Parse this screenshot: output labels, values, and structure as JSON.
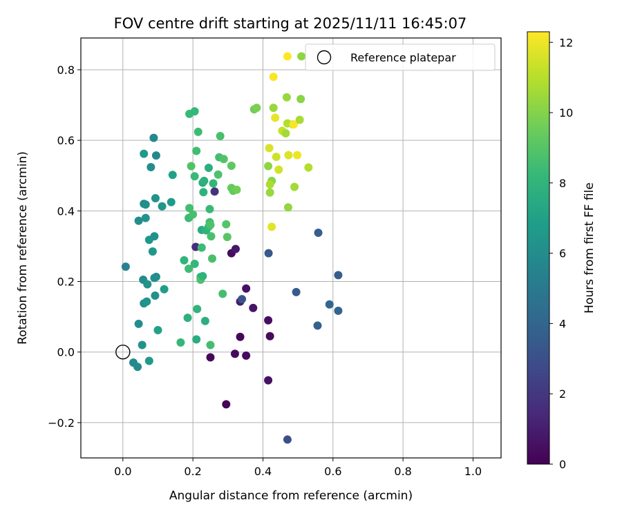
{
  "chart_data": {
    "type": "scatter",
    "title": "FOV centre drift starting at 2025/11/11 16:45:07",
    "xlabel": "Angular distance from reference (arcmin)",
    "ylabel": "Rotation from reference (arcmin)",
    "xlim": [
      -0.12,
      1.08
    ],
    "ylim": [
      -0.3,
      0.89
    ],
    "xticks": [
      0.0,
      0.2,
      0.4,
      0.6,
      0.8,
      1.0
    ],
    "xtick_labels": [
      "0.0",
      "0.2",
      "0.4",
      "0.6",
      "0.8",
      "1.0"
    ],
    "yticks": [
      -0.2,
      0.0,
      0.2,
      0.4,
      0.6,
      0.8
    ],
    "ytick_labels": [
      "−0.2",
      "0.0",
      "0.2",
      "0.4",
      "0.6",
      "0.8"
    ],
    "grid": true,
    "legend": {
      "label": "Reference platepar",
      "location": "top-right"
    },
    "reference_point": {
      "x": 0.0,
      "y": 0.0
    },
    "colorbar": {
      "label": "Hours from first FF file",
      "colormap": "viridis",
      "range": [
        0,
        12.3
      ],
      "ticks": [
        0,
        2,
        4,
        6,
        8,
        10,
        12
      ],
      "tick_labels": [
        "0",
        "2",
        "4",
        "6",
        "8",
        "10",
        "12"
      ]
    },
    "series": [
      {
        "name": "FOV centre",
        "points": [
          {
            "x": 0.25,
            "y": -0.015,
            "h": 0.2
          },
          {
            "x": 0.295,
            "y": -0.148,
            "h": 0.1
          },
          {
            "x": 0.32,
            "y": -0.005,
            "h": 0.3
          },
          {
            "x": 0.352,
            "y": -0.01,
            "h": 0.4
          },
          {
            "x": 0.335,
            "y": 0.043,
            "h": 0.2
          },
          {
            "x": 0.42,
            "y": 0.045,
            "h": 0.3
          },
          {
            "x": 0.415,
            "y": 0.09,
            "h": 0.5
          },
          {
            "x": 0.372,
            "y": 0.125,
            "h": 0.7
          },
          {
            "x": 0.335,
            "y": 0.143,
            "h": 0.9
          },
          {
            "x": 0.352,
            "y": 0.18,
            "h": 0.6
          },
          {
            "x": 0.31,
            "y": 0.28,
            "h": 0.4
          },
          {
            "x": 0.322,
            "y": 0.292,
            "h": 0.8
          },
          {
            "x": 0.415,
            "y": -0.08,
            "h": 0.6
          },
          {
            "x": 0.262,
            "y": 0.455,
            "h": 1.8
          },
          {
            "x": 0.208,
            "y": 0.298,
            "h": 1.6
          },
          {
            "x": 0.34,
            "y": 0.15,
            "h": 3.2
          },
          {
            "x": 0.416,
            "y": 0.28,
            "h": 3.4
          },
          {
            "x": 0.47,
            "y": -0.248,
            "h": 3.0
          },
          {
            "x": 0.495,
            "y": 0.17,
            "h": 3.5
          },
          {
            "x": 0.558,
            "y": 0.338,
            "h": 3.6
          },
          {
            "x": 0.556,
            "y": 0.075,
            "h": 3.8
          },
          {
            "x": 0.59,
            "y": 0.135,
            "h": 4.0
          },
          {
            "x": 0.615,
            "y": 0.218,
            "h": 3.6
          },
          {
            "x": 0.615,
            "y": 0.117,
            "h": 3.9
          },
          {
            "x": 0.008,
            "y": 0.242,
            "h": 5.5
          },
          {
            "x": 0.03,
            "y": -0.03,
            "h": 5.8
          },
          {
            "x": 0.042,
            "y": -0.042,
            "h": 5.9
          },
          {
            "x": 0.055,
            "y": 0.02,
            "h": 6.2
          },
          {
            "x": 0.045,
            "y": 0.08,
            "h": 6.0
          },
          {
            "x": 0.058,
            "y": 0.205,
            "h": 6.0
          },
          {
            "x": 0.07,
            "y": 0.192,
            "h": 6.3
          },
          {
            "x": 0.06,
            "y": 0.138,
            "h": 6.1
          },
          {
            "x": 0.068,
            "y": 0.143,
            "h": 6.4
          },
          {
            "x": 0.075,
            "y": -0.025,
            "h": 6.6
          },
          {
            "x": 0.092,
            "y": 0.16,
            "h": 6.2
          },
          {
            "x": 0.095,
            "y": 0.213,
            "h": 6.0
          },
          {
            "x": 0.09,
            "y": 0.21,
            "h": 6.1
          },
          {
            "x": 0.1,
            "y": 0.062,
            "h": 7.0
          },
          {
            "x": 0.118,
            "y": 0.178,
            "h": 6.9
          },
          {
            "x": 0.045,
            "y": 0.372,
            "h": 6.0
          },
          {
            "x": 0.065,
            "y": 0.38,
            "h": 6.3
          },
          {
            "x": 0.075,
            "y": 0.318,
            "h": 6.5
          },
          {
            "x": 0.09,
            "y": 0.328,
            "h": 6.2
          },
          {
            "x": 0.085,
            "y": 0.285,
            "h": 6.5
          },
          {
            "x": 0.06,
            "y": 0.42,
            "h": 5.8
          },
          {
            "x": 0.065,
            "y": 0.418,
            "h": 6.1
          },
          {
            "x": 0.093,
            "y": 0.436,
            "h": 6.3
          },
          {
            "x": 0.112,
            "y": 0.413,
            "h": 6.4
          },
          {
            "x": 0.138,
            "y": 0.425,
            "h": 6.7
          },
          {
            "x": 0.142,
            "y": 0.502,
            "h": 7.0
          },
          {
            "x": 0.06,
            "y": 0.562,
            "h": 6.6
          },
          {
            "x": 0.08,
            "y": 0.524,
            "h": 6.0
          },
          {
            "x": 0.095,
            "y": 0.557,
            "h": 5.8
          },
          {
            "x": 0.088,
            "y": 0.607,
            "h": 5.8
          },
          {
            "x": 0.165,
            "y": 0.027,
            "h": 8.2
          },
          {
            "x": 0.185,
            "y": 0.097,
            "h": 7.8
          },
          {
            "x": 0.21,
            "y": 0.036,
            "h": 7.6
          },
          {
            "x": 0.212,
            "y": 0.122,
            "h": 8.0
          },
          {
            "x": 0.235,
            "y": 0.088,
            "h": 7.7
          },
          {
            "x": 0.25,
            "y": 0.02,
            "h": 8.6
          },
          {
            "x": 0.175,
            "y": 0.26,
            "h": 8.0
          },
          {
            "x": 0.188,
            "y": 0.236,
            "h": 8.5
          },
          {
            "x": 0.205,
            "y": 0.25,
            "h": 8.2
          },
          {
            "x": 0.222,
            "y": 0.213,
            "h": 8.1
          },
          {
            "x": 0.222,
            "y": 0.205,
            "h": 8.8
          },
          {
            "x": 0.228,
            "y": 0.215,
            "h": 7.9
          },
          {
            "x": 0.225,
            "y": 0.296,
            "h": 8.4
          },
          {
            "x": 0.255,
            "y": 0.265,
            "h": 8.7
          },
          {
            "x": 0.285,
            "y": 0.165,
            "h": 8.6
          },
          {
            "x": 0.188,
            "y": 0.38,
            "h": 8.4
          },
          {
            "x": 0.19,
            "y": 0.408,
            "h": 8.6
          },
          {
            "x": 0.2,
            "y": 0.39,
            "h": 8.7
          },
          {
            "x": 0.225,
            "y": 0.346,
            "h": 7.6
          },
          {
            "x": 0.238,
            "y": 0.345,
            "h": 7.9
          },
          {
            "x": 0.245,
            "y": 0.355,
            "h": 8.2
          },
          {
            "x": 0.248,
            "y": 0.368,
            "h": 8.5
          },
          {
            "x": 0.25,
            "y": 0.36,
            "h": 8.8
          },
          {
            "x": 0.252,
            "y": 0.328,
            "h": 8.7
          },
          {
            "x": 0.248,
            "y": 0.405,
            "h": 8.3
          },
          {
            "x": 0.295,
            "y": 0.362,
            "h": 9.0
          },
          {
            "x": 0.298,
            "y": 0.326,
            "h": 9.1
          },
          {
            "x": 0.195,
            "y": 0.527,
            "h": 8.9
          },
          {
            "x": 0.205,
            "y": 0.498,
            "h": 8.3
          },
          {
            "x": 0.21,
            "y": 0.57,
            "h": 8.5
          },
          {
            "x": 0.23,
            "y": 0.453,
            "h": 7.9
          },
          {
            "x": 0.228,
            "y": 0.48,
            "h": 7.6
          },
          {
            "x": 0.232,
            "y": 0.485,
            "h": 7.8
          },
          {
            "x": 0.245,
            "y": 0.522,
            "h": 7.7
          },
          {
            "x": 0.258,
            "y": 0.478,
            "h": 8.1
          },
          {
            "x": 0.272,
            "y": 0.503,
            "h": 8.8
          },
          {
            "x": 0.275,
            "y": 0.552,
            "h": 8.6
          },
          {
            "x": 0.288,
            "y": 0.547,
            "h": 8.9
          },
          {
            "x": 0.31,
            "y": 0.528,
            "h": 9.2
          },
          {
            "x": 0.31,
            "y": 0.465,
            "h": 9.4
          },
          {
            "x": 0.315,
            "y": 0.457,
            "h": 9.3
          },
          {
            "x": 0.325,
            "y": 0.46,
            "h": 9.6
          },
          {
            "x": 0.278,
            "y": 0.612,
            "h": 8.7
          },
          {
            "x": 0.215,
            "y": 0.624,
            "h": 8.4
          },
          {
            "x": 0.19,
            "y": 0.675,
            "h": 8.3
          },
          {
            "x": 0.205,
            "y": 0.682,
            "h": 8.2
          },
          {
            "x": 0.375,
            "y": 0.688,
            "h": 9.6
          },
          {
            "x": 0.382,
            "y": 0.692,
            "h": 9.8
          },
          {
            "x": 0.415,
            "y": 0.527,
            "h": 10.2
          },
          {
            "x": 0.42,
            "y": 0.452,
            "h": 10.4
          },
          {
            "x": 0.425,
            "y": 0.485,
            "h": 10.1
          },
          {
            "x": 0.42,
            "y": 0.475,
            "h": 10.8
          },
          {
            "x": 0.418,
            "y": 0.578,
            "h": 11.6
          },
          {
            "x": 0.438,
            "y": 0.553,
            "h": 11.4
          },
          {
            "x": 0.445,
            "y": 0.517,
            "h": 11.5
          },
          {
            "x": 0.425,
            "y": 0.355,
            "h": 11.8
          },
          {
            "x": 0.43,
            "y": 0.692,
            "h": 10.4
          },
          {
            "x": 0.435,
            "y": 0.664,
            "h": 11.9
          },
          {
            "x": 0.455,
            "y": 0.627,
            "h": 11.3
          },
          {
            "x": 0.465,
            "y": 0.62,
            "h": 10.6
          },
          {
            "x": 0.468,
            "y": 0.722,
            "h": 10.4
          },
          {
            "x": 0.47,
            "y": 0.648,
            "h": 10.9
          },
          {
            "x": 0.472,
            "y": 0.41,
            "h": 10.3
          },
          {
            "x": 0.473,
            "y": 0.558,
            "h": 11.7
          },
          {
            "x": 0.485,
            "y": 0.645,
            "h": 11.2
          },
          {
            "x": 0.488,
            "y": 0.645,
            "h": 12.2
          },
          {
            "x": 0.49,
            "y": 0.468,
            "h": 10.6
          },
          {
            "x": 0.498,
            "y": 0.558,
            "h": 12.0
          },
          {
            "x": 0.505,
            "y": 0.658,
            "h": 10.7
          },
          {
            "x": 0.508,
            "y": 0.717,
            "h": 10.1
          },
          {
            "x": 0.53,
            "y": 0.523,
            "h": 10.9
          },
          {
            "x": 0.43,
            "y": 0.78,
            "h": 12.2
          },
          {
            "x": 0.47,
            "y": 0.838,
            "h": 12.3
          },
          {
            "x": 0.51,
            "y": 0.838,
            "h": 10.2
          }
        ]
      }
    ]
  }
}
